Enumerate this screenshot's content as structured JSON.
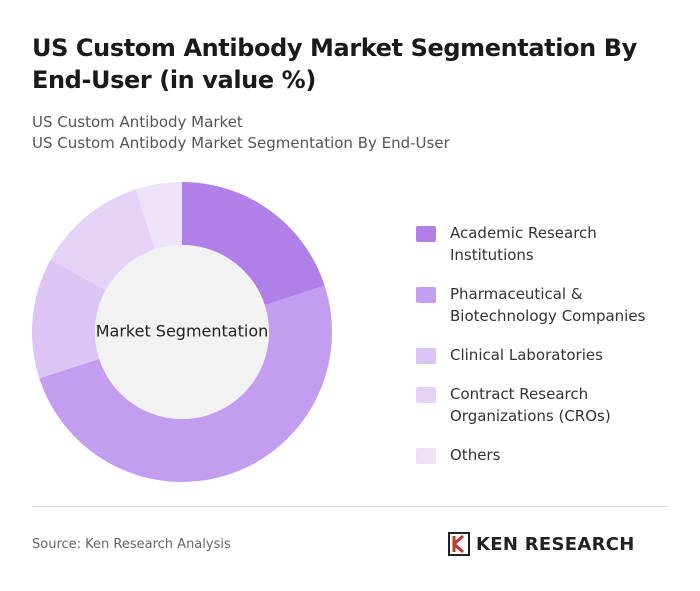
{
  "chart_data": {
    "type": "donut",
    "title": "US Custom Antibody Market Segmentation By End-User (in value %)",
    "subtitles": [
      "US Custom Antibody Market",
      "US Custom Antibody Market Segmentation By End-User"
    ],
    "center_label": "Market Segmentation",
    "categories": [
      "Academic Research Institutions",
      "Pharmaceutical & Biotechnology Companies",
      "Clinical Laboratories",
      "Contract Research Organizations (CROs)",
      "Others"
    ],
    "values": [
      20,
      50,
      13,
      12,
      5
    ],
    "colors": [
      "#b07fe8",
      "#c49cf0",
      "#dcc5f5",
      "#e4d3f6",
      "#ede2f8"
    ],
    "source": "Source: Ken Research Analysis",
    "logo_text": "KEN RESEARCH"
  }
}
